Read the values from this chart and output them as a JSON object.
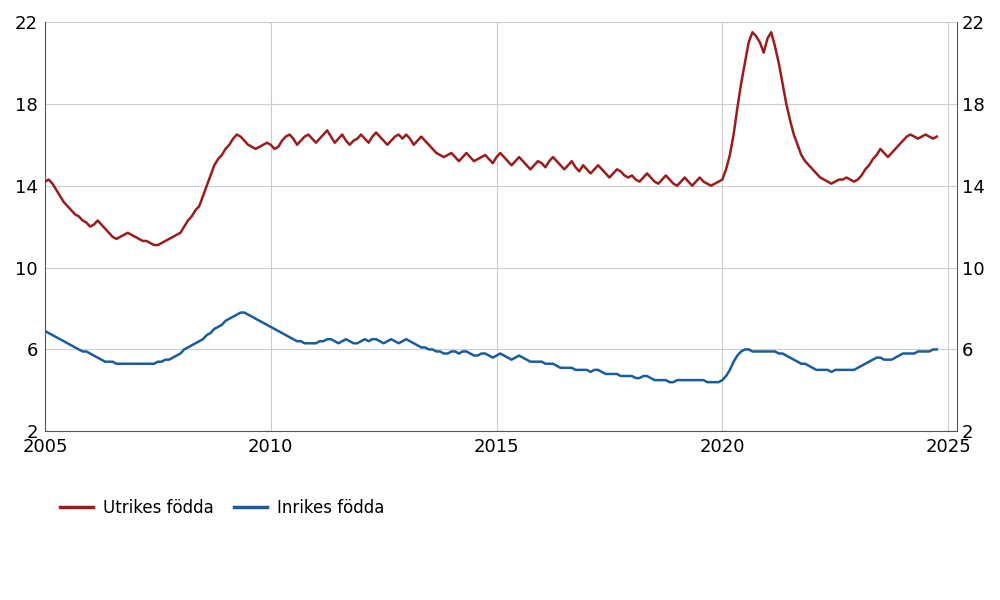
{
  "title": "",
  "utrikes_label": "Utrikes födda",
  "inrikes_label": "Inrikes födda",
  "utrikes_color": "#9b1c1c",
  "inrikes_color": "#1a5c9e",
  "ylim": [
    2,
    22
  ],
  "yticks": [
    2,
    6,
    10,
    14,
    18,
    22
  ],
  "xlim_start": 2005.0,
  "xlim_end": 2025.2,
  "xticks": [
    2005,
    2010,
    2015,
    2020,
    2025
  ],
  "background_color": "#ffffff",
  "grid_color": "#cccccc",
  "utrikes_x": [
    2005.0,
    2005.083,
    2005.167,
    2005.25,
    2005.333,
    2005.417,
    2005.5,
    2005.583,
    2005.667,
    2005.75,
    2005.833,
    2005.917,
    2006.0,
    2006.083,
    2006.167,
    2006.25,
    2006.333,
    2006.417,
    2006.5,
    2006.583,
    2006.667,
    2006.75,
    2006.833,
    2006.917,
    2007.0,
    2007.083,
    2007.167,
    2007.25,
    2007.333,
    2007.417,
    2007.5,
    2007.583,
    2007.667,
    2007.75,
    2007.833,
    2007.917,
    2008.0,
    2008.083,
    2008.167,
    2008.25,
    2008.333,
    2008.417,
    2008.5,
    2008.583,
    2008.667,
    2008.75,
    2008.833,
    2008.917,
    2009.0,
    2009.083,
    2009.167,
    2009.25,
    2009.333,
    2009.417,
    2009.5,
    2009.583,
    2009.667,
    2009.75,
    2009.833,
    2009.917,
    2010.0,
    2010.083,
    2010.167,
    2010.25,
    2010.333,
    2010.417,
    2010.5,
    2010.583,
    2010.667,
    2010.75,
    2010.833,
    2010.917,
    2011.0,
    2011.083,
    2011.167,
    2011.25,
    2011.333,
    2011.417,
    2011.5,
    2011.583,
    2011.667,
    2011.75,
    2011.833,
    2011.917,
    2012.0,
    2012.083,
    2012.167,
    2012.25,
    2012.333,
    2012.417,
    2012.5,
    2012.583,
    2012.667,
    2012.75,
    2012.833,
    2012.917,
    2013.0,
    2013.083,
    2013.167,
    2013.25,
    2013.333,
    2013.417,
    2013.5,
    2013.583,
    2013.667,
    2013.75,
    2013.833,
    2013.917,
    2014.0,
    2014.083,
    2014.167,
    2014.25,
    2014.333,
    2014.417,
    2014.5,
    2014.583,
    2014.667,
    2014.75,
    2014.833,
    2014.917,
    2015.0,
    2015.083,
    2015.167,
    2015.25,
    2015.333,
    2015.417,
    2015.5,
    2015.583,
    2015.667,
    2015.75,
    2015.833,
    2015.917,
    2016.0,
    2016.083,
    2016.167,
    2016.25,
    2016.333,
    2016.417,
    2016.5,
    2016.583,
    2016.667,
    2016.75,
    2016.833,
    2016.917,
    2017.0,
    2017.083,
    2017.167,
    2017.25,
    2017.333,
    2017.417,
    2017.5,
    2017.583,
    2017.667,
    2017.75,
    2017.833,
    2017.917,
    2018.0,
    2018.083,
    2018.167,
    2018.25,
    2018.333,
    2018.417,
    2018.5,
    2018.583,
    2018.667,
    2018.75,
    2018.833,
    2018.917,
    2019.0,
    2019.083,
    2019.167,
    2019.25,
    2019.333,
    2019.417,
    2019.5,
    2019.583,
    2019.667,
    2019.75,
    2019.833,
    2019.917,
    2020.0,
    2020.083,
    2020.167,
    2020.25,
    2020.333,
    2020.417,
    2020.5,
    2020.583,
    2020.667,
    2020.75,
    2020.833,
    2020.917,
    2021.0,
    2021.083,
    2021.167,
    2021.25,
    2021.333,
    2021.417,
    2021.5,
    2021.583,
    2021.667,
    2021.75,
    2021.833,
    2021.917,
    2022.0,
    2022.083,
    2022.167,
    2022.25,
    2022.333,
    2022.417,
    2022.5,
    2022.583,
    2022.667,
    2022.75,
    2022.833,
    2022.917,
    2023.0,
    2023.083,
    2023.167,
    2023.25,
    2023.333,
    2023.417,
    2023.5,
    2023.583,
    2023.667,
    2023.75,
    2023.833,
    2023.917,
    2024.0,
    2024.083,
    2024.167,
    2024.25,
    2024.333,
    2024.417,
    2024.5,
    2024.583,
    2024.667,
    2024.75
  ],
  "utrikes_y": [
    14.2,
    14.3,
    14.1,
    13.8,
    13.5,
    13.2,
    13.0,
    12.8,
    12.6,
    12.5,
    12.3,
    12.2,
    12.0,
    12.1,
    12.3,
    12.1,
    11.9,
    11.7,
    11.5,
    11.4,
    11.5,
    11.6,
    11.7,
    11.6,
    11.5,
    11.4,
    11.3,
    11.3,
    11.2,
    11.1,
    11.1,
    11.2,
    11.3,
    11.4,
    11.5,
    11.6,
    11.7,
    12.0,
    12.3,
    12.5,
    12.8,
    13.0,
    13.5,
    14.0,
    14.5,
    15.0,
    15.3,
    15.5,
    15.8,
    16.0,
    16.3,
    16.5,
    16.4,
    16.2,
    16.0,
    15.9,
    15.8,
    15.9,
    16.0,
    16.1,
    16.0,
    15.8,
    15.9,
    16.2,
    16.4,
    16.5,
    16.3,
    16.0,
    16.2,
    16.4,
    16.5,
    16.3,
    16.1,
    16.3,
    16.5,
    16.7,
    16.4,
    16.1,
    16.3,
    16.5,
    16.2,
    16.0,
    16.2,
    16.3,
    16.5,
    16.3,
    16.1,
    16.4,
    16.6,
    16.4,
    16.2,
    16.0,
    16.2,
    16.4,
    16.5,
    16.3,
    16.5,
    16.3,
    16.0,
    16.2,
    16.4,
    16.2,
    16.0,
    15.8,
    15.6,
    15.5,
    15.4,
    15.5,
    15.6,
    15.4,
    15.2,
    15.4,
    15.6,
    15.4,
    15.2,
    15.3,
    15.4,
    15.5,
    15.3,
    15.1,
    15.4,
    15.6,
    15.4,
    15.2,
    15.0,
    15.2,
    15.4,
    15.2,
    15.0,
    14.8,
    15.0,
    15.2,
    15.1,
    14.9,
    15.2,
    15.4,
    15.2,
    15.0,
    14.8,
    15.0,
    15.2,
    14.9,
    14.7,
    15.0,
    14.8,
    14.6,
    14.8,
    15.0,
    14.8,
    14.6,
    14.4,
    14.6,
    14.8,
    14.7,
    14.5,
    14.4,
    14.5,
    14.3,
    14.2,
    14.4,
    14.6,
    14.4,
    14.2,
    14.1,
    14.3,
    14.5,
    14.3,
    14.1,
    14.0,
    14.2,
    14.4,
    14.2,
    14.0,
    14.2,
    14.4,
    14.2,
    14.1,
    14.0,
    14.1,
    14.2,
    14.3,
    14.8,
    15.5,
    16.5,
    17.8,
    19.0,
    20.0,
    21.0,
    21.5,
    21.3,
    21.0,
    20.5,
    21.2,
    21.5,
    20.8,
    20.0,
    19.0,
    18.0,
    17.2,
    16.5,
    16.0,
    15.5,
    15.2,
    15.0,
    14.8,
    14.6,
    14.4,
    14.3,
    14.2,
    14.1,
    14.2,
    14.3,
    14.3,
    14.4,
    14.3,
    14.2,
    14.3,
    14.5,
    14.8,
    15.0,
    15.3,
    15.5,
    15.8,
    15.6,
    15.4,
    15.6,
    15.8,
    16.0,
    16.2,
    16.4,
    16.5,
    16.4,
    16.3,
    16.4,
    16.5,
    16.4,
    16.3,
    16.4
  ],
  "inrikes_x": [
    2005.0,
    2005.083,
    2005.167,
    2005.25,
    2005.333,
    2005.417,
    2005.5,
    2005.583,
    2005.667,
    2005.75,
    2005.833,
    2005.917,
    2006.0,
    2006.083,
    2006.167,
    2006.25,
    2006.333,
    2006.417,
    2006.5,
    2006.583,
    2006.667,
    2006.75,
    2006.833,
    2006.917,
    2007.0,
    2007.083,
    2007.167,
    2007.25,
    2007.333,
    2007.417,
    2007.5,
    2007.583,
    2007.667,
    2007.75,
    2007.833,
    2007.917,
    2008.0,
    2008.083,
    2008.167,
    2008.25,
    2008.333,
    2008.417,
    2008.5,
    2008.583,
    2008.667,
    2008.75,
    2008.833,
    2008.917,
    2009.0,
    2009.083,
    2009.167,
    2009.25,
    2009.333,
    2009.417,
    2009.5,
    2009.583,
    2009.667,
    2009.75,
    2009.833,
    2009.917,
    2010.0,
    2010.083,
    2010.167,
    2010.25,
    2010.333,
    2010.417,
    2010.5,
    2010.583,
    2010.667,
    2010.75,
    2010.833,
    2010.917,
    2011.0,
    2011.083,
    2011.167,
    2011.25,
    2011.333,
    2011.417,
    2011.5,
    2011.583,
    2011.667,
    2011.75,
    2011.833,
    2011.917,
    2012.0,
    2012.083,
    2012.167,
    2012.25,
    2012.333,
    2012.417,
    2012.5,
    2012.583,
    2012.667,
    2012.75,
    2012.833,
    2012.917,
    2013.0,
    2013.083,
    2013.167,
    2013.25,
    2013.333,
    2013.417,
    2013.5,
    2013.583,
    2013.667,
    2013.75,
    2013.833,
    2013.917,
    2014.0,
    2014.083,
    2014.167,
    2014.25,
    2014.333,
    2014.417,
    2014.5,
    2014.583,
    2014.667,
    2014.75,
    2014.833,
    2014.917,
    2015.0,
    2015.083,
    2015.167,
    2015.25,
    2015.333,
    2015.417,
    2015.5,
    2015.583,
    2015.667,
    2015.75,
    2015.833,
    2015.917,
    2016.0,
    2016.083,
    2016.167,
    2016.25,
    2016.333,
    2016.417,
    2016.5,
    2016.583,
    2016.667,
    2016.75,
    2016.833,
    2016.917,
    2017.0,
    2017.083,
    2017.167,
    2017.25,
    2017.333,
    2017.417,
    2017.5,
    2017.583,
    2017.667,
    2017.75,
    2017.833,
    2017.917,
    2018.0,
    2018.083,
    2018.167,
    2018.25,
    2018.333,
    2018.417,
    2018.5,
    2018.583,
    2018.667,
    2018.75,
    2018.833,
    2018.917,
    2019.0,
    2019.083,
    2019.167,
    2019.25,
    2019.333,
    2019.417,
    2019.5,
    2019.583,
    2019.667,
    2019.75,
    2019.833,
    2019.917,
    2020.0,
    2020.083,
    2020.167,
    2020.25,
    2020.333,
    2020.417,
    2020.5,
    2020.583,
    2020.667,
    2020.75,
    2020.833,
    2020.917,
    2021.0,
    2021.083,
    2021.167,
    2021.25,
    2021.333,
    2021.417,
    2021.5,
    2021.583,
    2021.667,
    2021.75,
    2021.833,
    2021.917,
    2022.0,
    2022.083,
    2022.167,
    2022.25,
    2022.333,
    2022.417,
    2022.5,
    2022.583,
    2022.667,
    2022.75,
    2022.833,
    2022.917,
    2023.0,
    2023.083,
    2023.167,
    2023.25,
    2023.333,
    2023.417,
    2023.5,
    2023.583,
    2023.667,
    2023.75,
    2023.833,
    2023.917,
    2024.0,
    2024.083,
    2024.167,
    2024.25,
    2024.333,
    2024.417,
    2024.5,
    2024.583,
    2024.667,
    2024.75
  ],
  "inrikes_y": [
    6.9,
    6.8,
    6.7,
    6.6,
    6.5,
    6.4,
    6.3,
    6.2,
    6.1,
    6.0,
    5.9,
    5.9,
    5.8,
    5.7,
    5.6,
    5.5,
    5.4,
    5.4,
    5.4,
    5.3,
    5.3,
    5.3,
    5.3,
    5.3,
    5.3,
    5.3,
    5.3,
    5.3,
    5.3,
    5.3,
    5.4,
    5.4,
    5.5,
    5.5,
    5.6,
    5.7,
    5.8,
    6.0,
    6.1,
    6.2,
    6.3,
    6.4,
    6.5,
    6.7,
    6.8,
    7.0,
    7.1,
    7.2,
    7.4,
    7.5,
    7.6,
    7.7,
    7.8,
    7.8,
    7.7,
    7.6,
    7.5,
    7.4,
    7.3,
    7.2,
    7.1,
    7.0,
    6.9,
    6.8,
    6.7,
    6.6,
    6.5,
    6.4,
    6.4,
    6.3,
    6.3,
    6.3,
    6.3,
    6.4,
    6.4,
    6.5,
    6.5,
    6.4,
    6.3,
    6.4,
    6.5,
    6.4,
    6.3,
    6.3,
    6.4,
    6.5,
    6.4,
    6.5,
    6.5,
    6.4,
    6.3,
    6.4,
    6.5,
    6.4,
    6.3,
    6.4,
    6.5,
    6.4,
    6.3,
    6.2,
    6.1,
    6.1,
    6.0,
    6.0,
    5.9,
    5.9,
    5.8,
    5.8,
    5.9,
    5.9,
    5.8,
    5.9,
    5.9,
    5.8,
    5.7,
    5.7,
    5.8,
    5.8,
    5.7,
    5.6,
    5.7,
    5.8,
    5.7,
    5.6,
    5.5,
    5.6,
    5.7,
    5.6,
    5.5,
    5.4,
    5.4,
    5.4,
    5.4,
    5.3,
    5.3,
    5.3,
    5.2,
    5.1,
    5.1,
    5.1,
    5.1,
    5.0,
    5.0,
    5.0,
    5.0,
    4.9,
    5.0,
    5.0,
    4.9,
    4.8,
    4.8,
    4.8,
    4.8,
    4.7,
    4.7,
    4.7,
    4.7,
    4.6,
    4.6,
    4.7,
    4.7,
    4.6,
    4.5,
    4.5,
    4.5,
    4.5,
    4.4,
    4.4,
    4.5,
    4.5,
    4.5,
    4.5,
    4.5,
    4.5,
    4.5,
    4.5,
    4.4,
    4.4,
    4.4,
    4.4,
    4.5,
    4.7,
    5.0,
    5.4,
    5.7,
    5.9,
    6.0,
    6.0,
    5.9,
    5.9,
    5.9,
    5.9,
    5.9,
    5.9,
    5.9,
    5.8,
    5.8,
    5.7,
    5.6,
    5.5,
    5.4,
    5.3,
    5.3,
    5.2,
    5.1,
    5.0,
    5.0,
    5.0,
    5.0,
    4.9,
    5.0,
    5.0,
    5.0,
    5.0,
    5.0,
    5.0,
    5.1,
    5.2,
    5.3,
    5.4,
    5.5,
    5.6,
    5.6,
    5.5,
    5.5,
    5.5,
    5.6,
    5.7,
    5.8,
    5.8,
    5.8,
    5.8,
    5.9,
    5.9,
    5.9,
    5.9,
    6.0,
    6.0
  ],
  "line_width": 1.8,
  "legend_fontsize": 12,
  "tick_fontsize": 13
}
